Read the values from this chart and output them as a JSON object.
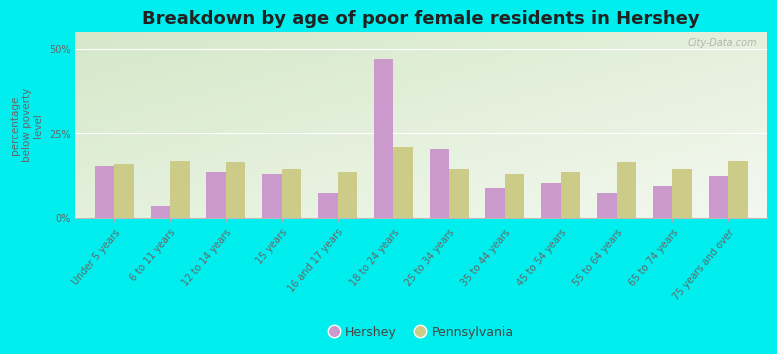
{
  "title": "Breakdown by age of poor female residents in Hershey",
  "ylabel": "percentage\nbelow poverty\nlevel",
  "categories": [
    "Under 5 years",
    "6 to 11 years",
    "12 to 14 years",
    "15 years",
    "16 and 17 years",
    "18 to 24 years",
    "25 to 34 years",
    "35 to 44 years",
    "45 to 54 years",
    "55 to 64 years",
    "65 to 74 years",
    "75 years and over"
  ],
  "hershey_values": [
    15.5,
    3.5,
    13.5,
    13.0,
    7.5,
    47.0,
    20.5,
    9.0,
    10.5,
    7.5,
    9.5,
    12.5
  ],
  "pennsylvania_values": [
    16.0,
    17.0,
    16.5,
    14.5,
    13.5,
    21.0,
    14.5,
    13.0,
    13.5,
    16.5,
    14.5,
    17.0
  ],
  "hershey_color": "#cc99cc",
  "pennsylvania_color": "#cccc88",
  "background_color": "#00eeee",
  "plot_bg_top_left": "#d4e8c8",
  "plot_bg_bottom_right": "#f0f4e8",
  "ylim": [
    0,
    55
  ],
  "yticks": [
    0,
    25,
    50
  ],
  "ytick_labels": [
    "0%",
    "25%",
    "50%"
  ],
  "bar_width": 0.35,
  "title_fontsize": 13,
  "axis_label_fontsize": 7.5,
  "tick_fontsize": 7,
  "legend_fontsize": 9,
  "watermark": "City-Data.com"
}
